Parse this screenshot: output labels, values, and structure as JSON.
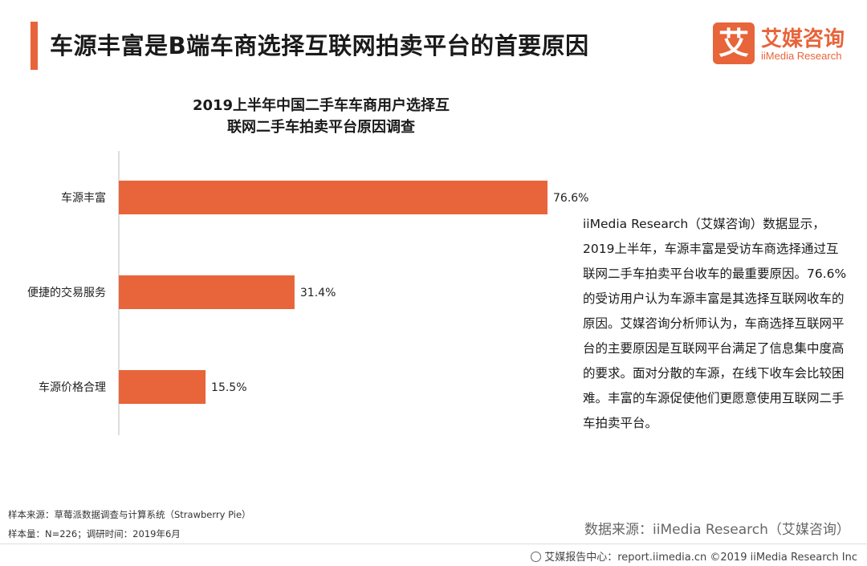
{
  "header": {
    "title": "车源丰富是B端车商选择互联网拍卖平台的首要原因",
    "accent_color": "#e8643a"
  },
  "logo": {
    "glyph": "艾",
    "name_cn": "艾媒咨询",
    "name_en": "iiMedia Research"
  },
  "chart_data": {
    "type": "bar",
    "orientation": "horizontal",
    "title_line1": "2019上半年中国二手车车商用户选择互",
    "title_line2": "联网二手车拍卖平台原因调查",
    "categories": [
      "车源丰富",
      "便捷的交易服务",
      "车源价格合理"
    ],
    "values": [
      76.6,
      31.4,
      15.5
    ],
    "value_labels": [
      "76.6%",
      "31.4%",
      "15.5%"
    ],
    "unit": "%",
    "bar_color": "#e8643a",
    "grid": false,
    "legend": "none"
  },
  "description": "iiMedia Research（艾媒咨询）数据显示，2019上半年，车源丰富是受访车商选择通过互联网二手车拍卖平台收车的最重要原因。76.6%的受访用户认为车源丰富是其选择互联网收车的原因。艾媒咨询分析师认为，车商选择互联网平台的主要原因是互联网平台满足了信息集中度高的要求。面对分散的车源，在线下收车会比较困难。丰富的车源促使他们更愿意使用互联网二手车拍卖平台。",
  "notes": {
    "sample_source": "样本来源：草莓派数据调查与计算系统（Strawberry Pie）",
    "sample_size": "样本量：N=226；调研时间：2019年6月"
  },
  "source": "数据来源：iiMedia Research（艾媒咨询）",
  "footer": {
    "text": "艾媒报告中心：report.iimedia.cn  ©2019  iiMedia Research Inc",
    "icon": "globe-icon"
  }
}
